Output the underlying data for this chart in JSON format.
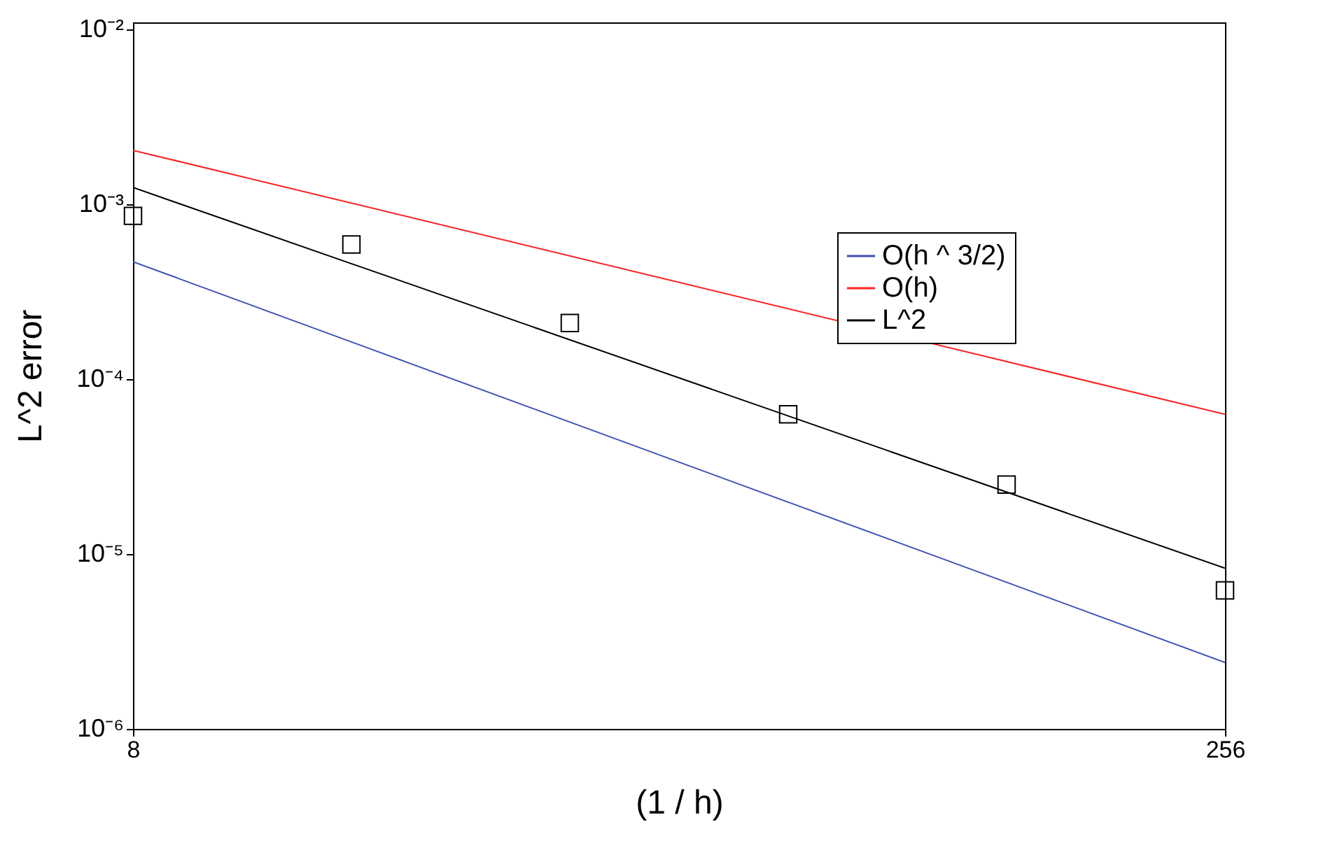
{
  "chart_data": {
    "type": "line",
    "xlabel": "(1 / h)",
    "ylabel": "L^2 error",
    "log": "xy",
    "grid": false,
    "legend": "top right",
    "xlim": [
      8,
      256
    ],
    "xticks": [
      8,
      256
    ],
    "ylim": [
      1e-06,
      0.011
    ],
    "yticks": [
      {
        "value": 1e-06,
        "label": "10⁻⁶"
      },
      {
        "value": 1e-05,
        "label": "10⁻⁵"
      },
      {
        "value": 0.0001,
        "label": "10⁻⁴"
      },
      {
        "value": 0.001,
        "label": "10⁻³"
      },
      {
        "value": 0.01,
        "label": "10⁻²"
      }
    ],
    "series": [
      {
        "name": "O(h ^ 3/2)",
        "color": "#3f51b5",
        "x": [
          8,
          256
        ],
        "values": [
          0.00047,
          2.4e-06
        ]
      },
      {
        "name": "O(h)",
        "color": "#ff2020",
        "x": [
          8,
          256
        ],
        "values": [
          0.00204,
          6.3e-05
        ]
      },
      {
        "name": "L^2",
        "type": "scatter",
        "marker": "square",
        "color": "#000000",
        "x": [
          8,
          16,
          32,
          64,
          128,
          256
        ],
        "values": [
          0.00086,
          0.00059,
          0.00021,
          6.3e-05,
          2.5e-05,
          6.2e-06
        ]
      },
      {
        "color": "#000000",
        "x": [
          8,
          256
        ],
        "values": [
          0.00125,
          8.3e-06
        ]
      }
    ]
  }
}
